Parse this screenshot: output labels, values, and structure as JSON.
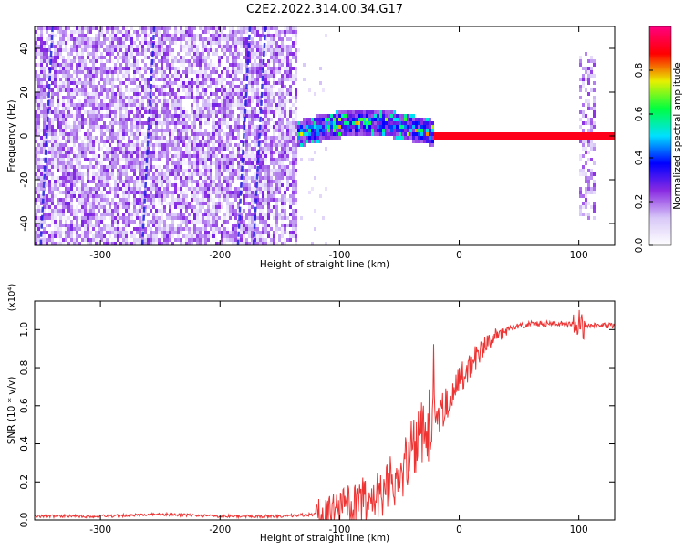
{
  "title": "C2E2.2022.314.00.34.G17",
  "chart_data": [
    {
      "type": "heatmap",
      "xlabel": "Height of straight line (km)",
      "ylabel": "Frequency (Hz)",
      "xlim": [
        -355,
        130
      ],
      "ylim": [
        -50,
        50
      ],
      "x_ticks": [
        -300,
        -200,
        -100,
        0,
        100
      ],
      "y_ticks": [
        -40,
        -20,
        0,
        20,
        40
      ],
      "colorbar": {
        "label": "Normalized spectral amplitude",
        "range": [
          0,
          1
        ],
        "ticks": [
          "0.0",
          "0.2",
          "0.4",
          "0.6",
          "0.8"
        ],
        "colors": [
          "#ffffff",
          "#d8c8f8",
          "#8a2be2",
          "#0000ff",
          "#00e0ff",
          "#00ff40",
          "#e8f000",
          "#ff0000",
          "#ff0080"
        ]
      },
      "features": {
        "noise_region_x": [
          -355,
          -135
        ],
        "frequency_drift_x": [
          -135,
          -20
        ],
        "carrier_x": [
          -20,
          130
        ],
        "carrier_frequency_hz": 0,
        "carrier_amplitude": 0.9,
        "vertical_band_x": [
          100,
          115
        ]
      }
    },
    {
      "type": "line",
      "xlabel": "Height of straight line (km)",
      "ylabel": "SNR (10 * v/v)",
      "y_multiplier": "(x10⁴)",
      "xlim": [
        -355,
        130
      ],
      "ylim": [
        0,
        1.15
      ],
      "x_ticks": [
        -300,
        -200,
        -100,
        0,
        100
      ],
      "y_ticks": [
        "0.0",
        "0.2",
        "0.4",
        "0.6",
        "0.8",
        "1.0"
      ],
      "color": "#ee3333",
      "series": [
        {
          "x": [
            -355,
            -300,
            -250,
            -200,
            -150,
            -120,
            -100,
            -80,
            -60,
            -50,
            -40,
            -30,
            -20,
            -10,
            0,
            10,
            20,
            30,
            40,
            50,
            60,
            80,
            100,
            110,
            130
          ],
          "values": [
            0.02,
            0.02,
            0.03,
            0.02,
            0.02,
            0.03,
            0.06,
            0.1,
            0.18,
            0.25,
            0.35,
            0.45,
            0.55,
            0.62,
            0.72,
            0.82,
            0.9,
            0.96,
            1.0,
            1.02,
            1.03,
            1.03,
            1.03,
            1.02,
            1.02
          ]
        }
      ]
    }
  ]
}
